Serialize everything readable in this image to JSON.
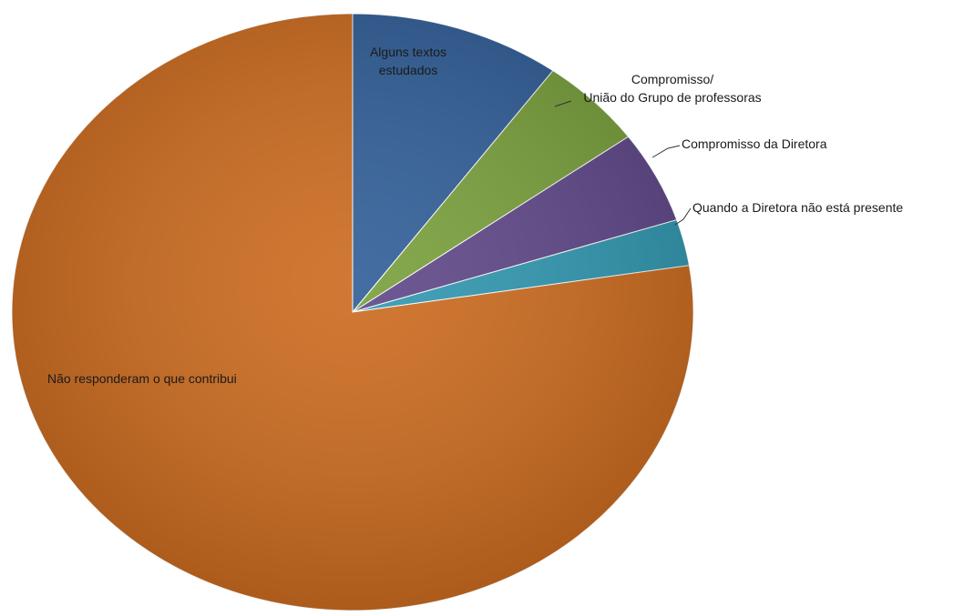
{
  "chart_data": {
    "type": "pie",
    "title": "",
    "slices": [
      {
        "label": "Alguns textos estudados",
        "label_lines": [
          "Alguns textos",
          "estudados"
        ],
        "value": 10,
        "color": "#2f5d97"
      },
      {
        "label": "Compromisso/ União do Grupo de professoras",
        "label_lines": [
          "Compromisso/",
          "União do Grupo de professoras"
        ],
        "value": 5,
        "color": "#789f3a"
      },
      {
        "label": "Compromisso da Diretora",
        "label_lines": [
          "Compromisso da Diretora"
        ],
        "value": 5,
        "color": "#5e4688"
      },
      {
        "label": "Quando a Diretora não está presente",
        "label_lines": [
          "Quando a Diretora não está presente"
        ],
        "value": 2.5,
        "color": "#2f97b0"
      },
      {
        "label": "Não responderam o que contribui",
        "label_lines": [
          "Não responderam o que contribui"
        ],
        "value": 77.5,
        "color": "#cc6a1d"
      }
    ],
    "legend": "none"
  }
}
